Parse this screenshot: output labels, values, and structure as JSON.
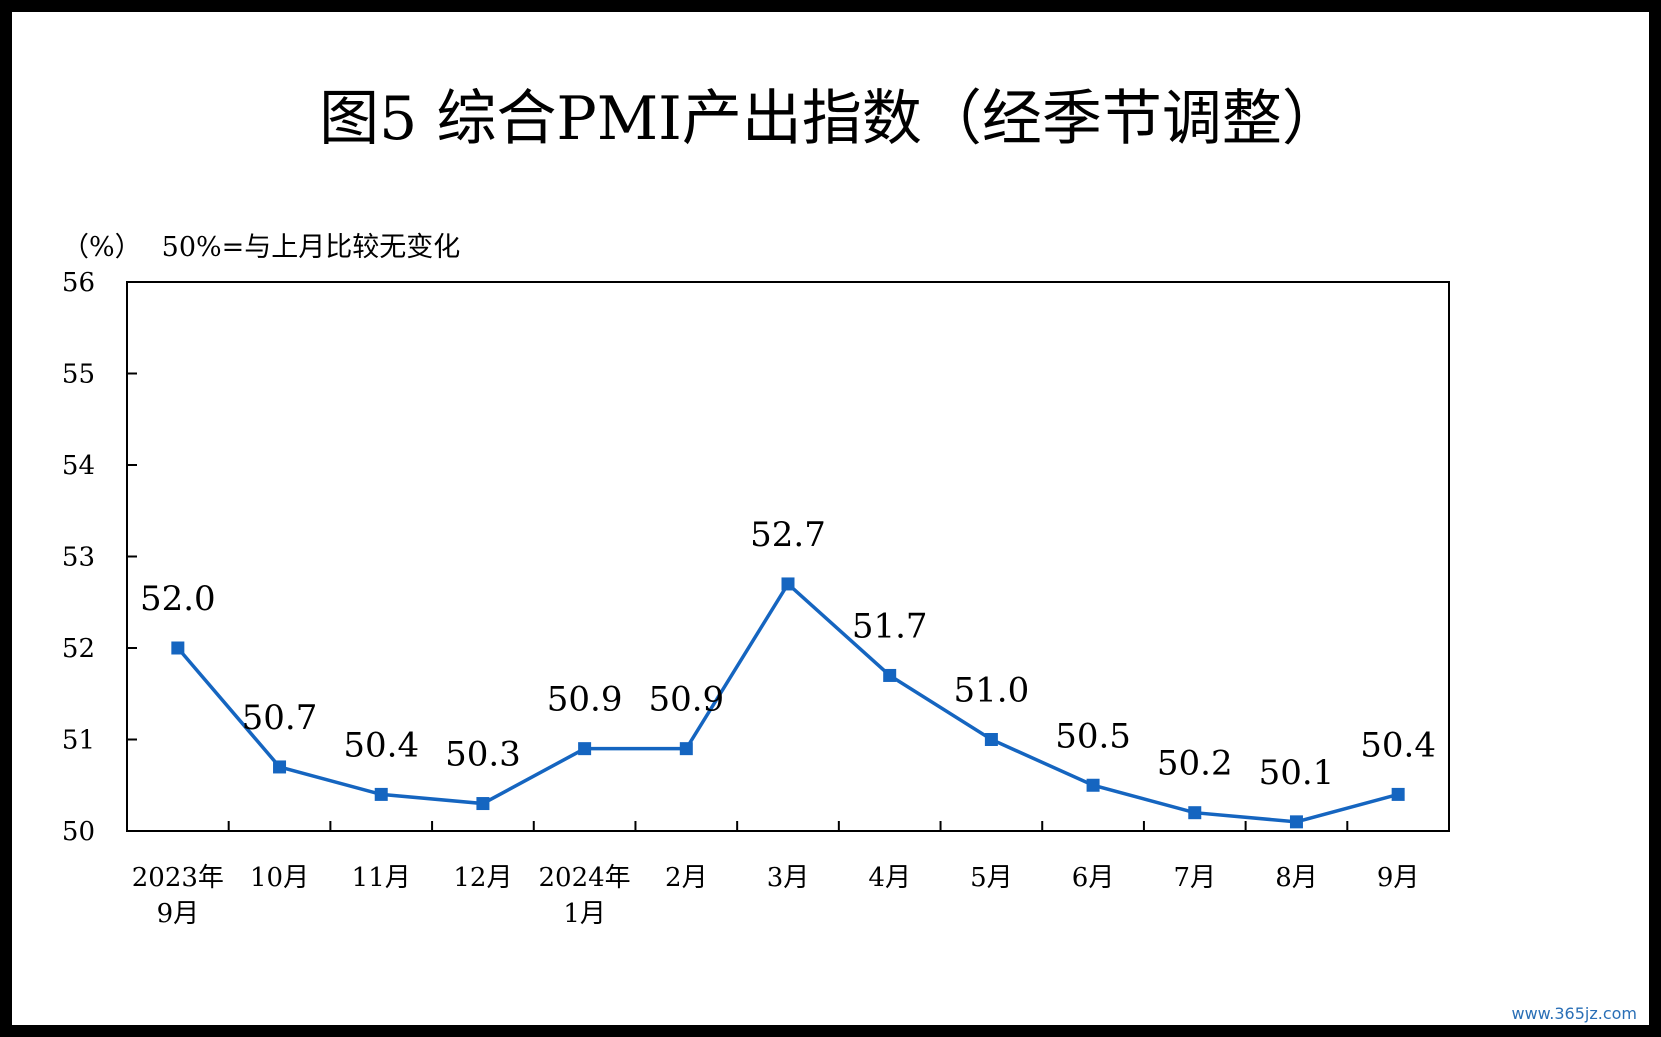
{
  "title": "图5  综合PMI产出指数（经季节调整）",
  "unit": "（%）",
  "note": "50%=与上月比较无变化",
  "watermark": "www.365jz.com",
  "chart_data": {
    "type": "line",
    "categories": [
      [
        "2023年",
        "9月"
      ],
      [
        "10月"
      ],
      [
        "11月"
      ],
      [
        "12月"
      ],
      [
        "2024年",
        "1月"
      ],
      [
        "2月"
      ],
      [
        "3月"
      ],
      [
        "4月"
      ],
      [
        "5月"
      ],
      [
        "6月"
      ],
      [
        "7月"
      ],
      [
        "8月"
      ],
      [
        "9月"
      ]
    ],
    "values": [
      52.0,
      50.7,
      50.4,
      50.3,
      50.9,
      50.9,
      52.7,
      51.7,
      51.0,
      50.5,
      50.2,
      50.1,
      50.4
    ],
    "data_labels": [
      "52.0",
      "50.7",
      "50.4",
      "50.3",
      "50.9",
      "50.9",
      "52.7",
      "51.7",
      "51.0",
      "50.5",
      "50.2",
      "50.1",
      "50.4"
    ],
    "ylim": [
      50,
      56
    ],
    "yticks": [
      50,
      51,
      52,
      53,
      54,
      55,
      56
    ],
    "line_color": "#1565c0",
    "grid": false,
    "xlabel": "",
    "ylabel": ""
  }
}
